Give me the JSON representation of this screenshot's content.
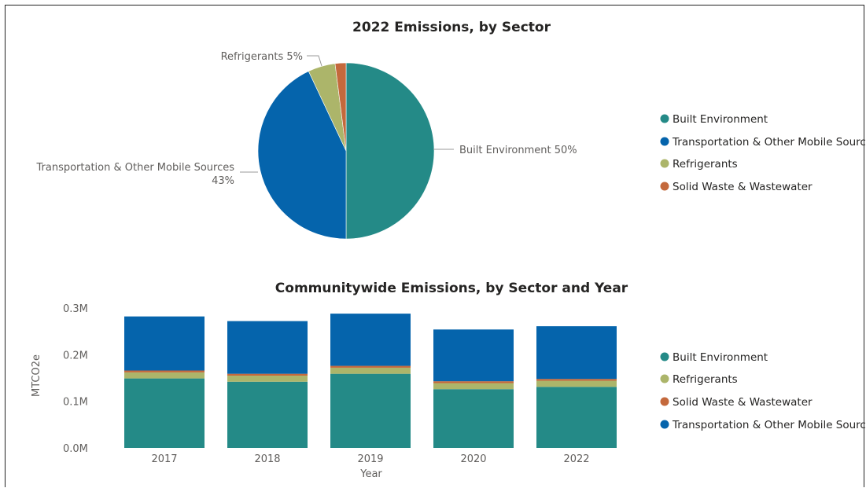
{
  "colors": {
    "built": "#248a87",
    "transport": "#0564ac",
    "refrigerants": "#acb56a",
    "waste": "#c4693c"
  },
  "pie": {
    "title": "2022 Emissions, by Sector",
    "legend": [
      {
        "label": "Built Environment",
        "color": "#248a87"
      },
      {
        "label": "Transportation & Other Mobile Sources",
        "color": "#0564ac"
      },
      {
        "label": "Refrigerants",
        "color": "#acb56a"
      },
      {
        "label": "Solid Waste & Wastewater",
        "color": "#c4693c"
      }
    ],
    "labels": {
      "built": "Built Environment 50%",
      "transport_line1": "Transportation & Other Mobile Sources",
      "transport_line2": "43%",
      "refrigerants": "Refrigerants 5%"
    }
  },
  "bar": {
    "title": "Communitywide Emissions, by Sector and Year",
    "xlabel": "Year",
    "ylabel": "MTCO2e",
    "yticks": [
      "0.0M",
      "0.1M",
      "0.2M",
      "0.3M"
    ],
    "legend": [
      {
        "label": "Built Environment",
        "color": "#248a87"
      },
      {
        "label": "Refrigerants",
        "color": "#acb56a"
      },
      {
        "label": "Solid Waste & Wastewater",
        "color": "#c4693c"
      },
      {
        "label": "Transportation & Other Mobile Sources",
        "color": "#0564ac"
      }
    ]
  },
  "chart_data": [
    {
      "type": "pie",
      "title": "2022 Emissions, by Sector",
      "slices": [
        {
          "name": "Built Environment",
          "value": 50
        },
        {
          "name": "Transportation & Other Mobile Sources",
          "value": 43
        },
        {
          "name": "Refrigerants",
          "value": 5
        },
        {
          "name": "Solid Waste & Wastewater",
          "value": 2
        }
      ],
      "legend_position": "right"
    },
    {
      "type": "bar",
      "stacked": true,
      "title": "Communitywide Emissions, by Sector and Year",
      "xlabel": "Year",
      "ylabel": "MTCO2e",
      "categories": [
        "2017",
        "2018",
        "2019",
        "2020",
        "2022"
      ],
      "ylim": [
        0,
        0.3
      ],
      "series": [
        {
          "name": "Built Environment",
          "values": [
            0.149,
            0.142,
            0.159,
            0.126,
            0.131
          ]
        },
        {
          "name": "Refrigerants",
          "values": [
            0.013,
            0.013,
            0.013,
            0.013,
            0.013
          ]
        },
        {
          "name": "Solid Waste & Wastewater",
          "values": [
            0.004,
            0.004,
            0.004,
            0.004,
            0.004
          ]
        },
        {
          "name": "Transportation & Other Mobile Sources",
          "values": [
            0.116,
            0.113,
            0.112,
            0.111,
            0.113
          ]
        }
      ],
      "legend_position": "right"
    }
  ]
}
